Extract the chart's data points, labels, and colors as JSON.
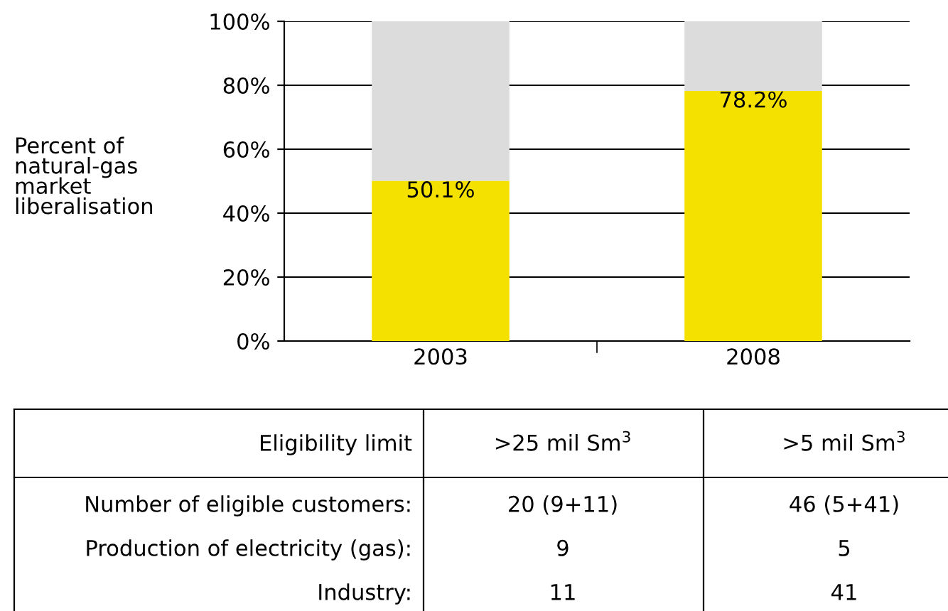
{
  "chart_data": {
    "type": "bar",
    "stacked": true,
    "ylabel": "Percent of\nnatural-gas\nmarket\nliberalisation",
    "categories": [
      "2003",
      "2008"
    ],
    "series": [
      {
        "color": "#f5e100",
        "values": [
          50.1,
          78.2
        ],
        "value_labels": [
          "50.1%",
          "78.2%"
        ]
      },
      {
        "color": "#dcdcdc",
        "values": [
          49.9,
          21.8
        ]
      }
    ],
    "ylim": [
      0,
      100
    ],
    "yticks": [
      {
        "value": 0,
        "label": "0%"
      },
      {
        "value": 20,
        "label": "20%"
      },
      {
        "value": 40,
        "label": "40%"
      },
      {
        "value": 60,
        "label": "60%"
      },
      {
        "value": 80,
        "label": "80%"
      },
      {
        "value": 100,
        "label": "100%"
      }
    ],
    "grid": "y",
    "annotations": [
      "Eligibility limit",
      ">25 mil Sm$^{3}$",
      ">5 mil Sm$^{3}$",
      "Number of eligible customers:",
      "20 (9+11)",
      "46 (5+41)",
      "Production of electricity (gas):",
      "9",
      "5",
      "Industry:",
      "11",
      "41"
    ]
  }
}
